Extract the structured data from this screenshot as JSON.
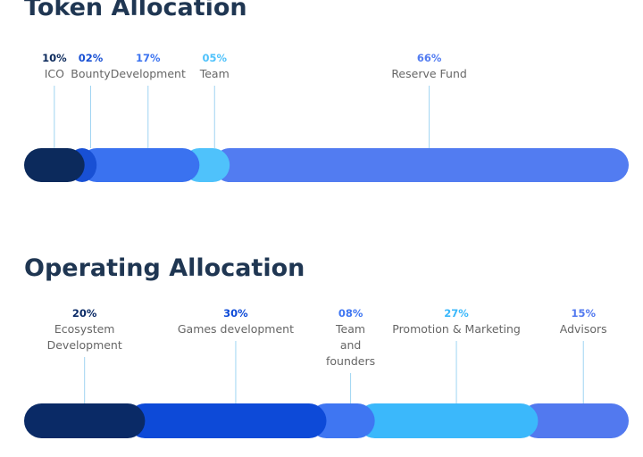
{
  "chart_data": [
    {
      "type": "bar",
      "title": "Token Allocation",
      "categories": [
        "ICO",
        "Bounty",
        "Development",
        "Team",
        "Reserve Fund"
      ],
      "values": [
        10,
        2,
        17,
        5,
        66
      ],
      "value_labels": [
        "10%",
        "02%",
        "17%",
        "05%",
        "66%"
      ],
      "colors": [
        "#0c2a5c",
        "#1850d4",
        "#3a72f0",
        "#4fc2fb",
        "#527cf1"
      ]
    },
    {
      "type": "bar",
      "title": "Operating Allocation",
      "categories": [
        "Ecosystem Development",
        "Games development",
        "Team and founders",
        "Promotion & Marketing",
        "Advisors"
      ],
      "values": [
        20,
        30,
        8,
        27,
        15
      ],
      "value_labels": [
        "20%",
        "30%",
        "08%",
        "27%",
        "15%"
      ],
      "colors": [
        "#0a2a66",
        "#0d4ad8",
        "#3f76f2",
        "#3bb8fb",
        "#5279ef"
      ]
    }
  ]
}
